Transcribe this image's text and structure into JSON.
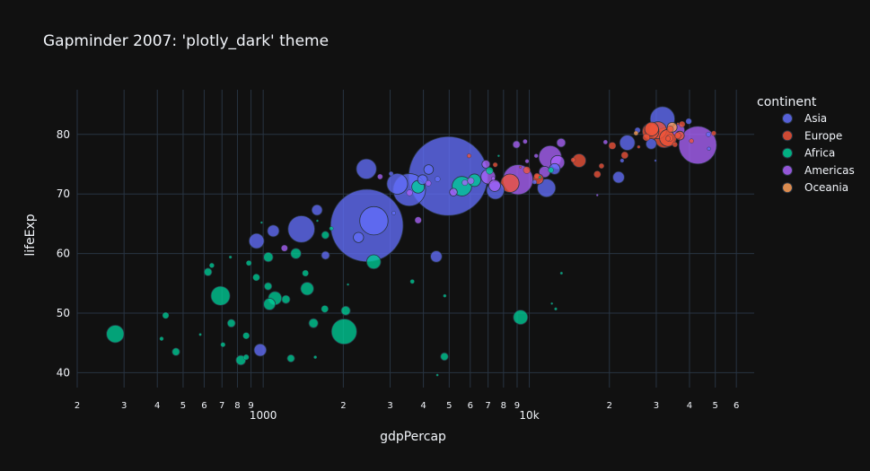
{
  "chart_data": {
    "type": "scatter",
    "title": "Gapminder 2007: 'plotly_dark' theme",
    "xlabel": "gdpPercap",
    "ylabel": "lifeExp",
    "x_scale": "log",
    "xlim": [
      200,
      70000
    ],
    "ylim": [
      37.5,
      87.5
    ],
    "x_major_ticks": [
      {
        "value": 1000,
        "label": "1000"
      },
      {
        "value": 10000,
        "label": "10k"
      }
    ],
    "x_minor_ticks": [
      {
        "value": 200,
        "label": "2"
      },
      {
        "value": 300,
        "label": "3"
      },
      {
        "value": 400,
        "label": "4"
      },
      {
        "value": 500,
        "label": "5"
      },
      {
        "value": 600,
        "label": "6"
      },
      {
        "value": 700,
        "label": "7"
      },
      {
        "value": 800,
        "label": "8"
      },
      {
        "value": 900,
        "label": "9"
      },
      {
        "value": 2000,
        "label": "2"
      },
      {
        "value": 3000,
        "label": "3"
      },
      {
        "value": 4000,
        "label": "4"
      },
      {
        "value": 5000,
        "label": "5"
      },
      {
        "value": 6000,
        "label": "6"
      },
      {
        "value": 7000,
        "label": "7"
      },
      {
        "value": 8000,
        "label": "8"
      },
      {
        "value": 9000,
        "label": "9"
      },
      {
        "value": 20000,
        "label": "2"
      },
      {
        "value": 30000,
        "label": "3"
      },
      {
        "value": 40000,
        "label": "4"
      },
      {
        "value": 50000,
        "label": "5"
      },
      {
        "value": 60000,
        "label": "6"
      }
    ],
    "y_ticks": [
      40,
      50,
      60,
      70,
      80
    ],
    "grid": true,
    "legend": {
      "title": "continent",
      "placement": "right"
    },
    "colors": {
      "background": "#111111",
      "grid": "#283442",
      "text": "#f2f5fa"
    },
    "series": [
      {
        "name": "Asia",
        "color": "#636efa",
        "points": [
          [
            974.6,
            43.8,
            31.9
          ],
          [
            29796,
            75.6,
            0.7
          ],
          [
            1391,
            64.1,
            150.4
          ],
          [
            1714,
            59.7,
            14.1
          ],
          [
            4959,
            73.0,
            1318.7
          ],
          [
            39725,
            82.2,
            6.98
          ],
          [
            2452,
            64.7,
            1110.4
          ],
          [
            3541,
            70.7,
            223.5
          ],
          [
            11606,
            71.0,
            69.5
          ],
          [
            4471,
            59.5,
            27.5
          ],
          [
            25523,
            80.7,
            6.43
          ],
          [
            31656,
            82.6,
            127.5
          ],
          [
            4519,
            72.5,
            6.05
          ],
          [
            1593,
            67.3,
            23.3
          ],
          [
            23348,
            78.6,
            49.0
          ],
          [
            47307,
            77.6,
            2.5
          ],
          [
            10461,
            72.0,
            3.92
          ],
          [
            12452,
            74.2,
            24.8
          ],
          [
            3096,
            66.8,
            2.87
          ],
          [
            944,
            62.1,
            47.8
          ],
          [
            1091,
            63.8,
            28.9
          ],
          [
            22316,
            75.6,
            3.2
          ],
          [
            2606,
            65.5,
            169.3
          ],
          [
            3190,
            71.7,
            91.1
          ],
          [
            21655,
            72.8,
            27.6
          ],
          [
            47143,
            80.0,
            4.55
          ],
          [
            3970,
            72.4,
            20.4
          ],
          [
            4185,
            74.1,
            19.3
          ],
          [
            28718,
            78.4,
            23.2
          ],
          [
            7458,
            70.6,
            65.1
          ],
          [
            2442,
            74.2,
            85.3
          ],
          [
            3025,
            73.4,
            4.02
          ],
          [
            2281,
            62.7,
            22.2
          ]
        ]
      },
      {
        "name": "Europe",
        "color": "#EF553B",
        "points": [
          [
            5937,
            76.4,
            3.6
          ],
          [
            36126,
            79.8,
            8.2
          ],
          [
            33693,
            79.4,
            10.4
          ],
          [
            7446,
            74.9,
            4.55
          ],
          [
            10681,
            73.0,
            7.32
          ],
          [
            14619,
            75.7,
            4.49
          ],
          [
            22833,
            76.5,
            10.2
          ],
          [
            35278,
            78.3,
            5.47
          ],
          [
            33207,
            79.3,
            5.24
          ],
          [
            30470,
            80.7,
            61.1
          ],
          [
            32170,
            79.4,
            82.4
          ],
          [
            27538,
            79.5,
            10.7
          ],
          [
            18009,
            73.3,
            9.96
          ],
          [
            36181,
            81.8,
            0.3
          ],
          [
            40676,
            78.9,
            4.11
          ],
          [
            28570,
            80.5,
            58.1
          ],
          [
            9254,
            74.5,
            0.68
          ],
          [
            36798,
            79.8,
            16.6
          ],
          [
            49357,
            80.2,
            4.63
          ],
          [
            15390,
            75.6,
            38.5
          ],
          [
            20510,
            78.1,
            10.6
          ],
          [
            10808,
            72.5,
            22.3
          ],
          [
            9787,
            74.0,
            10.2
          ],
          [
            18678,
            74.7,
            5.45
          ],
          [
            25768,
            77.9,
            2.01
          ],
          [
            28821,
            80.9,
            40.4
          ],
          [
            33860,
            80.9,
            9.03
          ],
          [
            37506,
            81.7,
            7.55
          ],
          [
            8458,
            71.8,
            71.2
          ],
          [
            33203,
            79.4,
            60.8
          ]
        ]
      },
      {
        "name": "Africa",
        "color": "#00cc96",
        "points": [
          [
            6223,
            72.3,
            33.3
          ],
          [
            4797,
            42.7,
            12.4
          ],
          [
            1441,
            56.7,
            8.08
          ],
          [
            12570,
            50.7,
            1.64
          ],
          [
            1217,
            52.3,
            14.3
          ],
          [
            430,
            49.6,
            8.39
          ],
          [
            2042,
            50.4,
            17.7
          ],
          [
            706,
            44.7,
            4.37
          ],
          [
            1704,
            50.7,
            10.2
          ],
          [
            986,
            65.2,
            0.71
          ],
          [
            278,
            46.5,
            64.6
          ],
          [
            3633,
            55.3,
            3.8
          ],
          [
            1545,
            48.3,
            18.0
          ],
          [
            2082,
            54.8,
            0.5
          ],
          [
            5581,
            71.3,
            80.3
          ],
          [
            12154,
            51.6,
            0.55
          ],
          [
            641,
            58.0,
            4.91
          ],
          [
            691,
            52.9,
            76.5
          ],
          [
            13206,
            56.7,
            1.45
          ],
          [
            753,
            59.4,
            1.69
          ],
          [
            1327,
            60.0,
            22.9
          ],
          [
            942,
            56.0,
            9.95
          ],
          [
            580,
            46.4,
            1.47
          ],
          [
            1463,
            54.1,
            35.6
          ],
          [
            1569,
            42.6,
            2.01
          ],
          [
            415,
            45.7,
            3.19
          ],
          [
            12057,
            74.0,
            6.04
          ],
          [
            1045,
            59.4,
            19.2
          ],
          [
            759,
            48.3,
            13.3
          ],
          [
            1043,
            54.5,
            12.0
          ],
          [
            1803,
            64.2,
            3.27
          ],
          [
            10957,
            72.8,
            1.25
          ],
          [
            3820,
            71.2,
            33.8
          ],
          [
            824,
            42.1,
            19.95
          ],
          [
            4811,
            52.9,
            2.06
          ],
          [
            620,
            56.9,
            12.9
          ],
          [
            2014,
            46.9,
            135.0
          ],
          [
            7670,
            76.4,
            0.8
          ],
          [
            863,
            46.2,
            8.86
          ],
          [
            1598,
            65.5,
            0.2
          ],
          [
            1712,
            63.1,
            12.3
          ],
          [
            863,
            42.6,
            6.14
          ],
          [
            9270,
            49.3,
            43.9
          ],
          [
            2602,
            58.6,
            42.3
          ],
          [
            4513,
            39.6,
            1.13
          ],
          [
            1107,
            52.5,
            38.1
          ],
          [
            883,
            58.4,
            5.7
          ],
          [
            7093,
            73.9,
            10.3
          ],
          [
            1056,
            51.5,
            29.2
          ],
          [
            1271,
            42.4,
            11.7
          ],
          [
            470,
            43.5,
            12.3
          ]
        ]
      },
      {
        "name": "Americas",
        "color": "#ab63fa",
        "points": [
          [
            12779,
            75.3,
            40.3
          ],
          [
            3822,
            65.6,
            9.12
          ],
          [
            9066,
            72.4,
            190.0
          ],
          [
            36319,
            80.7,
            33.4
          ],
          [
            13172,
            78.6,
            16.3
          ],
          [
            7007,
            72.9,
            44.2
          ],
          [
            9645,
            78.8,
            4.13
          ],
          [
            8948,
            78.3,
            11.4
          ],
          [
            6025,
            72.2,
            9.32
          ],
          [
            6873,
            75.0,
            13.8
          ],
          [
            5728,
            71.9,
            6.94
          ],
          [
            5186,
            70.3,
            12.6
          ],
          [
            1202,
            60.9,
            8.5
          ],
          [
            3548,
            70.2,
            7.48
          ],
          [
            7321,
            72.6,
            2.78
          ],
          [
            11978,
            76.2,
            108.7
          ],
          [
            2749,
            72.9,
            5.68
          ],
          [
            9809,
            75.5,
            3.24
          ],
          [
            4173,
            71.8,
            6.67
          ],
          [
            7409,
            71.4,
            28.7
          ],
          [
            19329,
            78.7,
            3.94
          ],
          [
            18009,
            69.8,
            1.06
          ],
          [
            42952,
            78.2,
            301.1
          ],
          [
            10611,
            76.4,
            3.45
          ],
          [
            11416,
            73.7,
            26.1
          ]
        ]
      },
      {
        "name": "Oceania",
        "color": "#FFA15A",
        "points": [
          [
            34435,
            81.2,
            20.4
          ],
          [
            25185,
            80.2,
            4.12
          ]
        ]
      }
    ]
  }
}
